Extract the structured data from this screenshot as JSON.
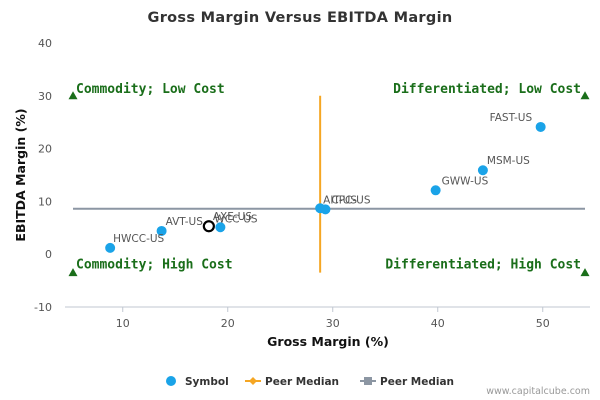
{
  "chart_data": {
    "type": "scatter",
    "title": "Gross Margin Versus EBITDA Margin",
    "xlabel": "Gross Margin (%)",
    "ylabel": "EBITDA Margin (%)",
    "xlim": [
      4.5,
      54.5
    ],
    "ylim": [
      -10,
      40
    ],
    "xticks": [
      10,
      20,
      30,
      40,
      50
    ],
    "yticks": [
      -10,
      0,
      10,
      20,
      30,
      40
    ],
    "grid": false,
    "points": [
      {
        "label": "FAST-US",
        "x": 49.8,
        "y": 24.1
      },
      {
        "label": "MSM-US",
        "x": 44.3,
        "y": 15.9
      },
      {
        "label": "GWW-US",
        "x": 39.8,
        "y": 12.1
      },
      {
        "label": "AIT-US",
        "x": 28.8,
        "y": 8.7
      },
      {
        "label": "CPC-US",
        "x": 29.3,
        "y": 8.5
      },
      {
        "label": "WCC-US",
        "x": 19.3,
        "y": 5.1
      },
      {
        "label": "AXE-US",
        "x": 18.2,
        "y": 5.3,
        "highlight": true
      },
      {
        "label": "AVT-US",
        "x": 13.7,
        "y": 4.4
      },
      {
        "label": "HWCC-US",
        "x": 8.8,
        "y": 1.2
      }
    ],
    "peer_median_x": 28.8,
    "peer_median_y": 8.6,
    "quadrants": [
      {
        "text": "Commodity; Low Cost",
        "pos": "top-left"
      },
      {
        "text": "Differentiated; Low Cost",
        "pos": "top-right"
      },
      {
        "text": "Commodity; High Cost",
        "pos": "bottom-left"
      },
      {
        "text": "Differentiated; High Cost",
        "pos": "bottom-right"
      }
    ],
    "legend": [
      {
        "label": "Symbol",
        "kind": "dot",
        "color": "#1aa3e8"
      },
      {
        "label": "Peer Median",
        "kind": "diamond-line",
        "color": "#f5a623"
      },
      {
        "label": "Peer Median",
        "kind": "square-line",
        "color": "#8c96a3"
      }
    ],
    "legend_position": "bottom-center",
    "colors": {
      "point": "#1aa3e8",
      "highlight_fill": "#ffffff",
      "highlight_stroke": "#000000",
      "vertical_median": "#f5a623",
      "horizontal_median": "#8c96a3",
      "quadrant_text": "#1a6e1a",
      "triangle": "#1a6e1a"
    }
  },
  "credit": "www.capitalcube.com"
}
